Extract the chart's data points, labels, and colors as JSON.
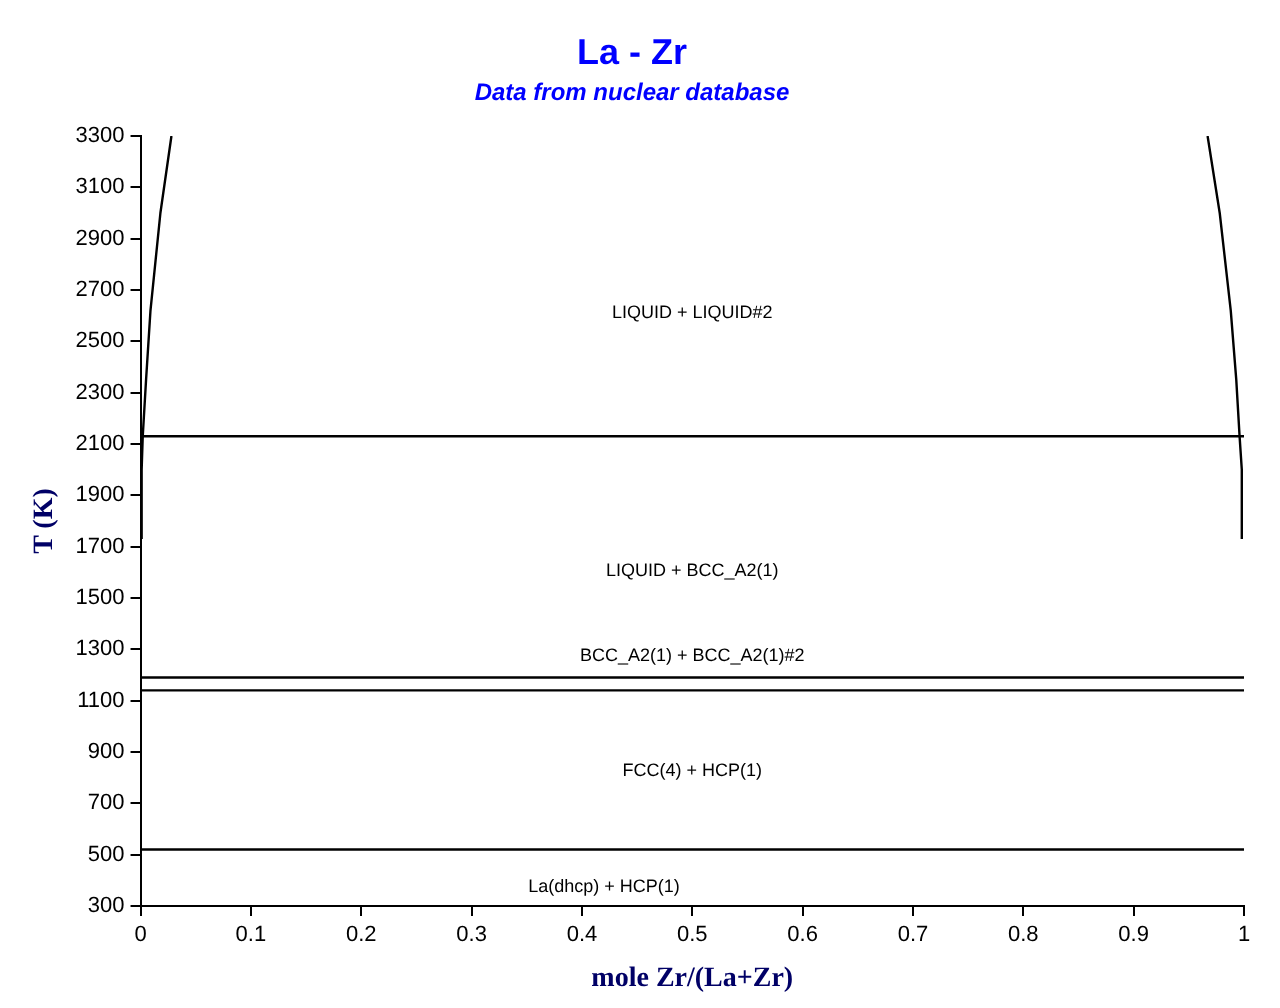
{
  "chart_data": {
    "type": "line",
    "title": "La - Zr",
    "subtitle": "Data from nuclear database",
    "xlabel": "mole Zr/(La+Zr)",
    "ylabel": "T (K)",
    "xlim": [
      0,
      1
    ],
    "xticks": [
      0,
      0.1,
      0.2,
      0.3,
      0.4,
      0.5,
      0.6,
      0.7,
      0.8,
      0.9,
      1
    ],
    "ylim": [
      300,
      3300
    ],
    "yticks": [
      300,
      500,
      700,
      900,
      1100,
      1300,
      1500,
      1700,
      1900,
      2100,
      2300,
      2500,
      2700,
      2900,
      3100,
      3300
    ],
    "grid": false,
    "legend": false,
    "marker": "none",
    "line_style": "solid",
    "series": [
      {
        "color": "#000000",
        "x": [
          0.001,
          0.001,
          0.002,
          0.005,
          0.009,
          0.018,
          0.028
        ],
        "values": [
          1730,
          2000,
          2130,
          2350,
          2620,
          3000,
          3300
        ]
      },
      {
        "color": "#000000",
        "x": [
          0.998,
          0.998,
          0.996,
          0.993,
          0.988,
          0.978,
          0.967
        ],
        "values": [
          1730,
          2000,
          2130,
          2350,
          2620,
          3000,
          3300
        ]
      },
      {
        "color": "#000000",
        "x": [
          0,
          1
        ],
        "values": [
          2130,
          2130
        ]
      },
      {
        "color": "#000000",
        "x": [
          0,
          1
        ],
        "values": [
          1190,
          1190
        ]
      },
      {
        "color": "#000000",
        "x": [
          0,
          1
        ],
        "values": [
          1140,
          1140
        ]
      },
      {
        "color": "#000000",
        "x": [
          0,
          1
        ],
        "values": [
          520,
          520
        ]
      }
    ],
    "annotations": [
      "LIQUID + LIQUID#2",
      "LIQUID + BCC_A2(1)",
      "BCC_A2(1) + BCC_A2(1)#2",
      "FCC(4) + HCP(1)",
      "La(dhcp) + HCP(1)"
    ]
  }
}
